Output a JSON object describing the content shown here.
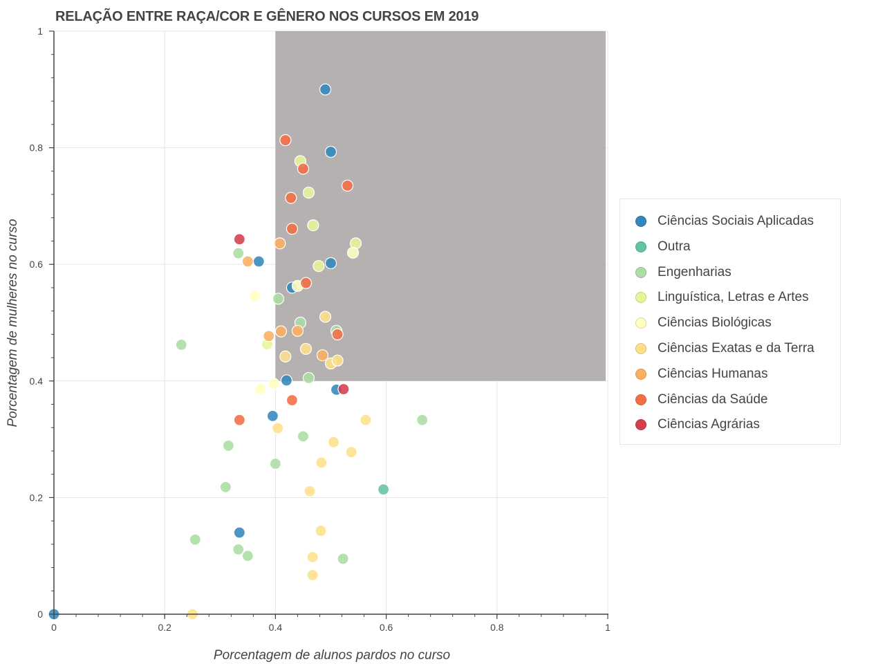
{
  "chart_data": {
    "type": "scatter",
    "title": "RELAÇÃO ENTRE RAÇA/COR E GÊNERO NOS CURSOS EM 2019",
    "xlabel": "Porcentagem de alunos pardos no curso",
    "ylabel": "Porcentagem de mulheres no curso",
    "xlim": [
      0,
      1
    ],
    "ylim": [
      0,
      1
    ],
    "x_ticks": [
      "0",
      "0.2",
      "0.4",
      "0.6",
      "0.8",
      "1"
    ],
    "y_ticks": [
      "0",
      "0.2",
      "0.4",
      "0.6",
      "0.8",
      "1"
    ],
    "grid": true,
    "legend_position": "right",
    "highlight_region": {
      "x": [
        0.4,
        1.0
      ],
      "y": [
        0.4,
        1.0
      ],
      "color": "#b5b1b1"
    },
    "series": [
      {
        "name": "Ciências Sociais Aplicadas",
        "color": "#3288bd",
        "points": [
          [
            0.49,
            0.9
          ],
          [
            0.5,
            0.793
          ],
          [
            0.5,
            0.602
          ],
          [
            0.37,
            0.605
          ],
          [
            0.43,
            0.56
          ],
          [
            0.42,
            0.401
          ],
          [
            0.51,
            0.385
          ],
          [
            0.395,
            0.34
          ],
          [
            0.335,
            0.14
          ],
          [
            0.0,
            0.0
          ]
        ]
      },
      {
        "name": "Outra",
        "color": "#66c2a5",
        "points": [
          [
            0.595,
            0.214
          ]
        ]
      },
      {
        "name": "Engenharias",
        "color": "#abdda4",
        "points": [
          [
            0.333,
            0.619
          ],
          [
            0.405,
            0.541
          ],
          [
            0.23,
            0.462
          ],
          [
            0.445,
            0.5
          ],
          [
            0.51,
            0.486
          ],
          [
            0.46,
            0.405
          ],
          [
            0.665,
            0.333
          ],
          [
            0.315,
            0.289
          ],
          [
            0.45,
            0.305
          ],
          [
            0.4,
            0.258
          ],
          [
            0.31,
            0.218
          ],
          [
            0.255,
            0.128
          ],
          [
            0.333,
            0.111
          ],
          [
            0.35,
            0.1
          ],
          [
            0.522,
            0.095
          ]
        ]
      },
      {
        "name": "Linguística, Letras e Artes",
        "color": "#e6f598",
        "points": [
          [
            0.445,
            0.777
          ],
          [
            0.46,
            0.723
          ],
          [
            0.468,
            0.667
          ],
          [
            0.545,
            0.636
          ],
          [
            0.478,
            0.597
          ],
          [
            0.385,
            0.463
          ]
        ]
      },
      {
        "name": "Ciências Biológicas",
        "color": "#ffffbf",
        "points": [
          [
            0.54,
            0.62
          ],
          [
            0.363,
            0.546
          ],
          [
            0.44,
            0.563
          ],
          [
            0.397,
            0.395
          ],
          [
            0.373,
            0.386
          ]
        ]
      },
      {
        "name": "Ciências Exatas e da Terra",
        "color": "#fee08b",
        "points": [
          [
            0.49,
            0.51
          ],
          [
            0.418,
            0.442
          ],
          [
            0.455,
            0.455
          ],
          [
            0.5,
            0.43
          ],
          [
            0.512,
            0.435
          ],
          [
            0.563,
            0.333
          ],
          [
            0.404,
            0.319
          ],
          [
            0.505,
            0.295
          ],
          [
            0.537,
            0.278
          ],
          [
            0.483,
            0.26
          ],
          [
            0.462,
            0.211
          ],
          [
            0.482,
            0.143
          ],
          [
            0.467,
            0.098
          ],
          [
            0.467,
            0.067
          ],
          [
            0.25,
            0.0
          ]
        ]
      },
      {
        "name": "Ciências Humanas",
        "color": "#fdae61",
        "points": [
          [
            0.408,
            0.636
          ],
          [
            0.35,
            0.605
          ],
          [
            0.41,
            0.485
          ],
          [
            0.44,
            0.486
          ],
          [
            0.388,
            0.477
          ],
          [
            0.485,
            0.444
          ]
        ]
      },
      {
        "name": "Ciências da Saúde",
        "color": "#f46d43",
        "points": [
          [
            0.418,
            0.813
          ],
          [
            0.45,
            0.764
          ],
          [
            0.53,
            0.735
          ],
          [
            0.428,
            0.714
          ],
          [
            0.43,
            0.661
          ],
          [
            0.455,
            0.568
          ],
          [
            0.512,
            0.48
          ],
          [
            0.43,
            0.367
          ],
          [
            0.335,
            0.333
          ]
        ]
      },
      {
        "name": "Ciências Agrárias",
        "color": "#d53e4f",
        "points": [
          [
            0.335,
            0.643
          ],
          [
            0.523,
            0.386
          ]
        ]
      }
    ]
  }
}
